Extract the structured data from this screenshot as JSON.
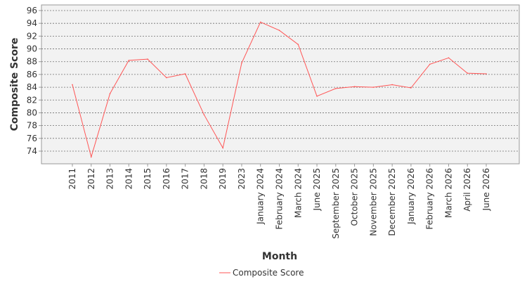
{
  "chart_data": {
    "type": "line",
    "title": "",
    "xlabel": "Month",
    "ylabel": "Composite Score",
    "categories": [
      "2011",
      "2012",
      "2013",
      "2014",
      "2015",
      "2016",
      "2017",
      "2018",
      "2019",
      "2023",
      "January 2024",
      "February 2024",
      "March 2024",
      "June 2025",
      "September 2025",
      "October 2025",
      "November 2025",
      "December 2025",
      "January 2026",
      "February 2026",
      "March 2026",
      "April 2026",
      "June 2026"
    ],
    "series": [
      {
        "name": "Composite Score",
        "color": "#ff5555",
        "values": [
          84.4,
          73.1,
          83.0,
          88.2,
          88.4,
          85.5,
          86.1,
          79.7,
          74.5,
          87.8,
          94.2,
          92.9,
          90.7,
          82.6,
          83.8,
          84.1,
          84.0,
          84.4,
          83.9,
          87.6,
          88.6,
          86.2,
          86.1
        ]
      }
    ],
    "ylim": [
      72,
      96.2
    ],
    "yticks": [
      74,
      76,
      78,
      80,
      82,
      84,
      86,
      88,
      90,
      92,
      94,
      96
    ],
    "grid": true,
    "legend_position": "bottom-center",
    "plot_background": "#f2f2f2",
    "gridline_color": "#707070"
  }
}
